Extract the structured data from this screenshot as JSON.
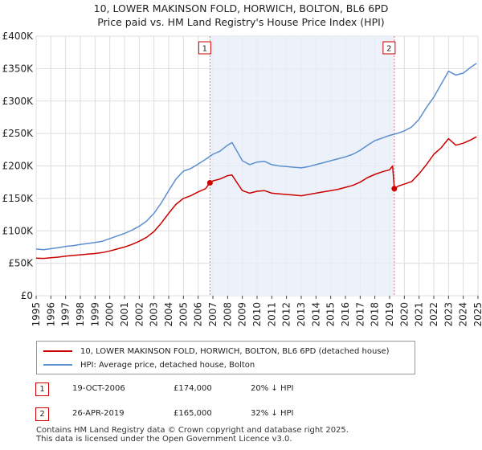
{
  "title": "10, LOWER MAKINSON FOLD, HORWICH, BOLTON, BL6 6PD",
  "subtitle": "Price paid vs. HM Land Registry's House Price Index (HPI)",
  "chart_data": {
    "type": "line",
    "ylim": [
      0,
      400000
    ],
    "xlim": [
      1995.0,
      2025.0
    ],
    "y_ticks": [
      0,
      50000,
      100000,
      150000,
      200000,
      250000,
      300000,
      350000,
      400000
    ],
    "y_tick_labels": [
      "£0",
      "£50K",
      "£100K",
      "£150K",
      "£200K",
      "£250K",
      "£300K",
      "£350K",
      "£400K"
    ],
    "x_ticks": [
      "1995",
      "1996",
      "1997",
      "1998",
      "1999",
      "2000",
      "2001",
      "2002",
      "2003",
      "2004",
      "2005",
      "2006",
      "2007",
      "2008",
      "2009",
      "2010",
      "2011",
      "2012",
      "2013",
      "2014",
      "2015",
      "2016",
      "2017",
      "2018",
      "2019",
      "2020",
      "2021",
      "2022",
      "2023",
      "2024",
      "2025"
    ],
    "shaded_region": [
      2006.8,
      2019.32
    ],
    "series": [
      {
        "name": "HPI: Average price, detached house, Bolton",
        "color": "#5b8fd0",
        "x": [
          1995.0,
          1995.5,
          1996.0,
          1996.5,
          1997.0,
          1997.5,
          1998.0,
          1998.5,
          1999.0,
          1999.5,
          2000.0,
          2000.5,
          2001.0,
          2001.5,
          2002.0,
          2002.5,
          2003.0,
          2003.5,
          2004.0,
          2004.5,
          2005.0,
          2005.5,
          2006.0,
          2006.5,
          2007.0,
          2007.5,
          2008.0,
          2008.3,
          2008.7,
          2009.0,
          2009.5,
          2010.0,
          2010.5,
          2011.0,
          2011.5,
          2012.0,
          2012.5,
          2013.0,
          2013.5,
          2014.0,
          2014.5,
          2015.0,
          2015.5,
          2016.0,
          2016.5,
          2017.0,
          2017.5,
          2018.0,
          2018.5,
          2019.0,
          2019.5,
          2020.0,
          2020.5,
          2021.0,
          2021.5,
          2022.0,
          2022.5,
          2023.0,
          2023.5,
          2024.0,
          2024.5,
          2024.9
        ],
        "values": [
          72000,
          71000,
          72500,
          74000,
          76000,
          77000,
          79000,
          80500,
          82000,
          84000,
          88000,
          92000,
          96000,
          101000,
          107000,
          115000,
          127000,
          143000,
          162000,
          180000,
          192000,
          196000,
          203000,
          210000,
          218000,
          223000,
          232000,
          236000,
          220000,
          208000,
          202000,
          206000,
          207000,
          202000,
          200000,
          199000,
          198000,
          197000,
          199000,
          202000,
          205000,
          208000,
          211000,
          214000,
          218000,
          224000,
          232000,
          239000,
          243000,
          247000,
          250000,
          254000,
          260000,
          272000,
          290000,
          306000,
          326000,
          346000,
          340000,
          343000,
          352000,
          358000
        ]
      },
      {
        "name": "10, LOWER MAKINSON FOLD, HORWICH, BOLTON, BL6 6PD (detached house)",
        "color": "#cc0000",
        "x": [
          1995.0,
          1995.5,
          1996.0,
          1996.5,
          1997.0,
          1997.5,
          1998.0,
          1998.5,
          1999.0,
          1999.5,
          2000.0,
          2000.5,
          2001.0,
          2001.5,
          2002.0,
          2002.5,
          2003.0,
          2003.5,
          2004.0,
          2004.5,
          2005.0,
          2005.5,
          2006.0,
          2006.5,
          2006.8,
          2007.0,
          2007.5,
          2008.0,
          2008.3,
          2008.7,
          2009.0,
          2009.5,
          2010.0,
          2010.5,
          2011.0,
          2011.5,
          2012.0,
          2012.5,
          2013.0,
          2013.5,
          2014.0,
          2014.5,
          2015.0,
          2015.5,
          2016.0,
          2016.5,
          2017.0,
          2017.5,
          2018.0,
          2018.5,
          2019.0,
          2019.2,
          2019.32,
          2019.6,
          2020.0,
          2020.5,
          2021.0,
          2021.5,
          2022.0,
          2022.5,
          2023.0,
          2023.5,
          2024.0,
          2024.5,
          2024.9
        ],
        "values": [
          58000,
          57500,
          58500,
          59500,
          61000,
          62000,
          63000,
          64000,
          65000,
          66500,
          69000,
          72000,
          75000,
          79000,
          84000,
          90000,
          99000,
          112000,
          127000,
          141000,
          150000,
          154000,
          160000,
          165000,
          174000,
          177000,
          180000,
          185000,
          186000,
          172000,
          162000,
          158000,
          161000,
          162000,
          158000,
          157000,
          156000,
          155000,
          154000,
          156000,
          158000,
          160000,
          162000,
          164000,
          167000,
          170000,
          175000,
          182000,
          187000,
          191000,
          194000,
          200000,
          165000,
          169000,
          172000,
          176000,
          188000,
          202000,
          218000,
          228000,
          242000,
          232000,
          235000,
          240000,
          245000
        ]
      }
    ],
    "annotations": [
      {
        "label": "1",
        "x": 2006.8,
        "value": 174000
      },
      {
        "label": "2",
        "x": 2019.32,
        "value": 165000
      }
    ]
  },
  "legend": {
    "property_label": "10, LOWER MAKINSON FOLD, HORWICH, BOLTON, BL6 6PD (detached house)",
    "hpi_label": "HPI: Average price, detached house, Bolton",
    "property_color": "#cc0000",
    "hpi_color": "#5b8fd0"
  },
  "transactions": [
    {
      "num": "1",
      "date": "19-OCT-2006",
      "price": "£174,000",
      "hpi": "20% ↓ HPI"
    },
    {
      "num": "2",
      "date": "26-APR-2019",
      "price": "£165,000",
      "hpi": "32% ↓ HPI"
    }
  ],
  "footer": {
    "line1": "Contains HM Land Registry data © Crown copyright and database right 2025.",
    "line2": "This data is licensed under the Open Government Licence v3.0."
  }
}
